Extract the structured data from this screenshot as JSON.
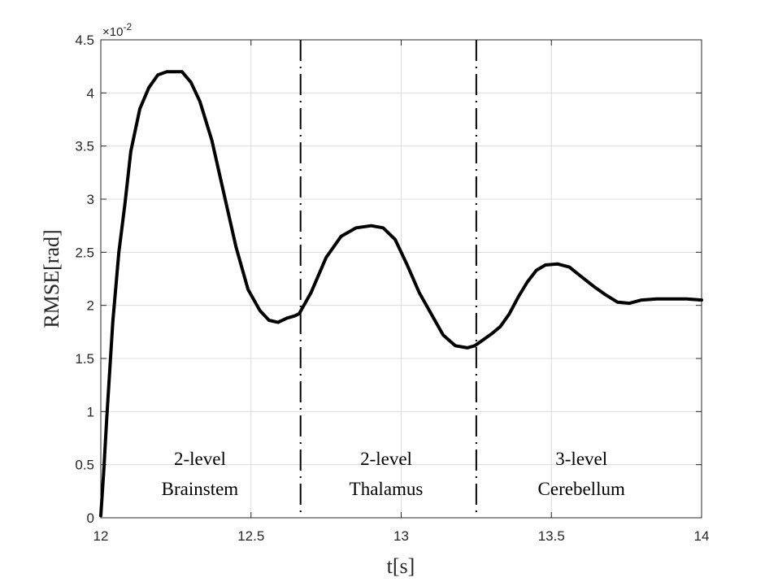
{
  "chart_data": {
    "type": "line",
    "xlabel": "t[s]",
    "ylabel": "RMSE[rad]",
    "y_multiplier": "×10",
    "y_multiplier_exponent": "-2",
    "xlim": [
      12,
      14
    ],
    "ylim": [
      0,
      4.5
    ],
    "x_ticks": [
      "12",
      "12.5",
      "13",
      "13.5",
      "14"
    ],
    "y_ticks": [
      "0",
      "0.5",
      "1",
      "1.5",
      "2",
      "2.5",
      "3",
      "3.5",
      "4",
      "4.5"
    ],
    "grid": true,
    "series": [
      {
        "color": "#000000",
        "x": [
          12.0,
          12.01,
          12.02,
          12.04,
          12.06,
          12.08,
          12.1,
          12.13,
          12.16,
          12.19,
          12.22,
          12.25,
          12.27,
          12.3,
          12.33,
          12.37,
          12.41,
          12.45,
          12.49,
          12.53,
          12.56,
          12.59,
          12.62,
          12.645,
          12.66,
          12.7,
          12.75,
          12.8,
          12.85,
          12.9,
          12.94,
          12.98,
          13.02,
          13.06,
          13.1,
          13.14,
          13.18,
          13.22,
          13.245,
          13.27,
          13.3,
          13.33,
          13.36,
          13.39,
          13.42,
          13.45,
          13.48,
          13.52,
          13.56,
          13.6,
          13.64,
          13.68,
          13.72,
          13.76,
          13.8,
          13.85,
          13.9,
          13.95,
          14.0
        ],
        "y": [
          0.02,
          0.45,
          0.95,
          1.85,
          2.5,
          2.95,
          3.45,
          3.85,
          4.05,
          4.17,
          4.2,
          4.2,
          4.2,
          4.1,
          3.92,
          3.55,
          3.05,
          2.55,
          2.15,
          1.95,
          1.86,
          1.84,
          1.88,
          1.9,
          1.92,
          2.12,
          2.45,
          2.65,
          2.73,
          2.75,
          2.73,
          2.62,
          2.38,
          2.12,
          1.92,
          1.72,
          1.62,
          1.6,
          1.62,
          1.67,
          1.73,
          1.8,
          1.92,
          2.08,
          2.22,
          2.33,
          2.38,
          2.39,
          2.36,
          2.27,
          2.18,
          2.1,
          2.03,
          2.02,
          2.05,
          2.06,
          2.06,
          2.06,
          2.05
        ]
      }
    ],
    "dividers": [
      {
        "x": 12.665,
        "style": "dash-dot",
        "color": "#000000"
      },
      {
        "x": 13.25,
        "style": "dash-dot",
        "color": "#000000"
      }
    ],
    "annotations": [
      {
        "x": 12.33,
        "line1": "2-level",
        "line2": "Brainstem"
      },
      {
        "x": 12.95,
        "line1": "2-level",
        "line2": "Thalamus"
      },
      {
        "x": 13.6,
        "line1": "3-level",
        "line2": "Cerebellum"
      }
    ]
  }
}
